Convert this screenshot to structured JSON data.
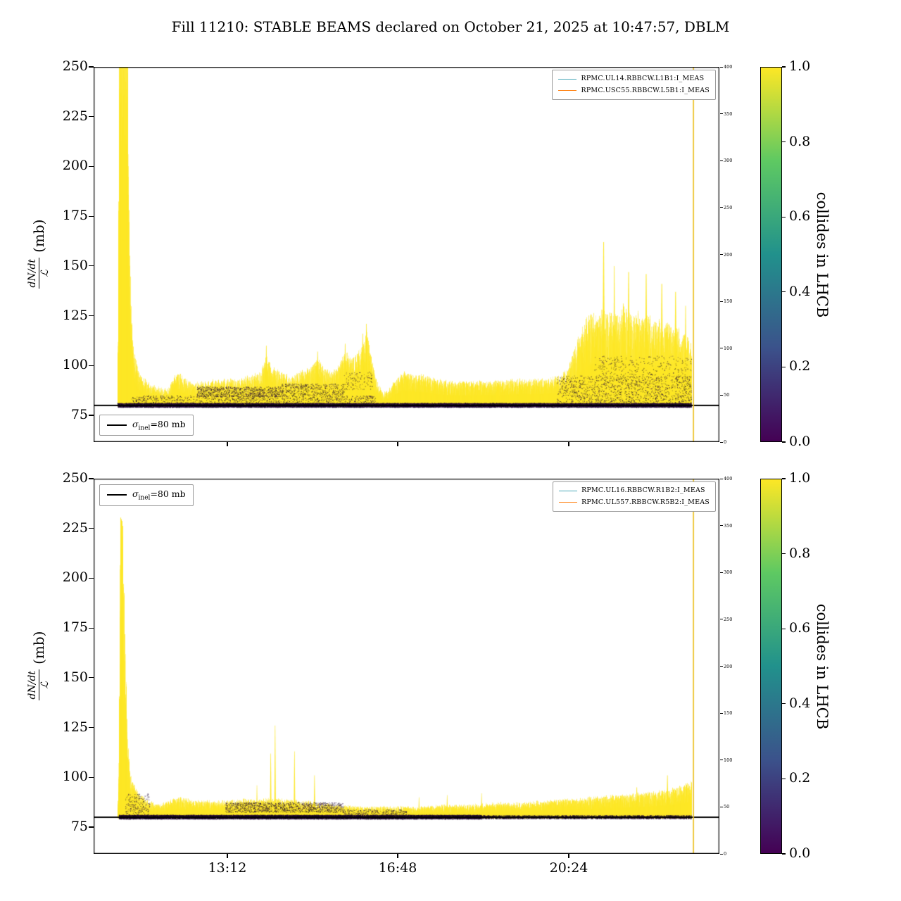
{
  "title": "Fill 11210: STABLE BEAMS declared on October 21, 2025 at 10:47:57, DBLM",
  "colors": {
    "data_yellow": "#fde725",
    "data_dark": "#2e0b45",
    "data_darker": "#120820",
    "ref_line": "#000000",
    "legend_line1": "#49a8b8",
    "legend_line2": "#ff7f0e",
    "vline": "#ecbf1e",
    "frame": "#000000"
  },
  "colorbar": {
    "label": "collides in LHCB",
    "ticks": [
      "1.0",
      "0.8",
      "0.6",
      "0.4",
      "0.2",
      "0.0"
    ],
    "gradient": [
      "#440154",
      "#3b528b",
      "#21918c",
      "#5ec962",
      "#fde725"
    ]
  },
  "xticks": [
    {
      "label": "13:12",
      "pos": 0.2137
    },
    {
      "label": "16:48",
      "pos": 0.4859
    },
    {
      "label": "20:24",
      "pos": 0.7593
    }
  ],
  "chart_data": [
    {
      "type": "scatter",
      "name": "beam1",
      "ylabel": {
        "num": "dN/dt",
        "den": "ℒ",
        "unit": "(mb)"
      },
      "ylim": [
        61.6,
        250
      ],
      "yticks": [
        250,
        225,
        200,
        175,
        150,
        125,
        100,
        75
      ],
      "right_yticks": [
        400,
        350,
        300,
        250,
        200,
        150,
        100,
        50,
        0
      ],
      "legend": [
        "RPMC.UL14.RBBCW.L1B1:I_MEAS",
        "RPMC.USC55.RBBCW.L5B1:I_MEAS"
      ],
      "sigma_label": {
        "symbol": "σ",
        "sub": "inel",
        "value": "=80 mb"
      },
      "reference_value": 80,
      "vline_x": 0.958,
      "seed": 7,
      "data_start": 0.038,
      "data_end": 0.955,
      "envelope": [
        [
          0.036,
          82
        ],
        [
          0.038,
          95
        ],
        [
          0.04,
          250
        ],
        [
          0.054,
          250
        ],
        [
          0.057,
          170
        ],
        [
          0.06,
          125
        ],
        [
          0.064,
          108
        ],
        [
          0.07,
          99
        ],
        [
          0.078,
          94
        ],
        [
          0.09,
          91
        ],
        [
          0.105,
          89
        ],
        [
          0.118,
          88
        ],
        [
          0.128,
          95
        ],
        [
          0.138,
          96
        ],
        [
          0.148,
          93
        ],
        [
          0.16,
          91
        ],
        [
          0.175,
          92
        ],
        [
          0.19,
          93
        ],
        [
          0.21,
          93
        ],
        [
          0.23,
          93
        ],
        [
          0.25,
          95
        ],
        [
          0.268,
          98
        ],
        [
          0.276,
          106
        ],
        [
          0.284,
          99
        ],
        [
          0.3,
          97
        ],
        [
          0.315,
          95
        ],
        [
          0.33,
          97
        ],
        [
          0.345,
          99
        ],
        [
          0.358,
          104
        ],
        [
          0.368,
          99
        ],
        [
          0.38,
          97
        ],
        [
          0.392,
          101
        ],
        [
          0.402,
          107
        ],
        [
          0.412,
          104
        ],
        [
          0.422,
          107
        ],
        [
          0.43,
          112
        ],
        [
          0.436,
          118
        ],
        [
          0.442,
          106
        ],
        [
          0.452,
          92
        ],
        [
          0.462,
          86
        ],
        [
          0.472,
          88
        ],
        [
          0.482,
          93
        ],
        [
          0.495,
          97
        ],
        [
          0.51,
          96
        ],
        [
          0.53,
          95
        ],
        [
          0.55,
          93
        ],
        [
          0.57,
          92
        ],
        [
          0.59,
          92
        ],
        [
          0.61,
          92
        ],
        [
          0.63,
          92
        ],
        [
          0.65,
          92
        ],
        [
          0.67,
          93
        ],
        [
          0.69,
          93
        ],
        [
          0.71,
          93
        ],
        [
          0.73,
          94
        ],
        [
          0.745,
          95
        ],
        [
          0.755,
          98
        ],
        [
          0.762,
          103
        ],
        [
          0.77,
          110
        ],
        [
          0.778,
          118
        ],
        [
          0.788,
          124
        ],
        [
          0.798,
          128
        ],
        [
          0.806,
          124
        ],
        [
          0.814,
          130
        ],
        [
          0.822,
          126
        ],
        [
          0.83,
          128
        ],
        [
          0.838,
          125
        ],
        [
          0.846,
          131
        ],
        [
          0.854,
          127
        ],
        [
          0.862,
          125
        ],
        [
          0.87,
          127
        ],
        [
          0.878,
          124
        ],
        [
          0.886,
          126
        ],
        [
          0.894,
          122
        ],
        [
          0.902,
          124
        ],
        [
          0.91,
          120
        ],
        [
          0.918,
          122
        ],
        [
          0.926,
          118
        ],
        [
          0.934,
          120
        ],
        [
          0.942,
          117
        ],
        [
          0.95,
          114
        ],
        [
          0.955,
          110
        ]
      ],
      "spikes": [
        [
          0.276,
          110,
          1.5
        ],
        [
          0.358,
          107,
          1.5
        ],
        [
          0.402,
          111,
          1.5
        ],
        [
          0.43,
          116,
          1.5
        ],
        [
          0.436,
          121,
          1.5
        ],
        [
          0.815,
          162,
          2
        ],
        [
          0.832,
          150,
          1.5
        ],
        [
          0.855,
          147,
          2
        ],
        [
          0.883,
          146,
          2
        ],
        [
          0.908,
          141,
          2
        ],
        [
          0.93,
          137,
          2
        ],
        [
          0.946,
          130,
          1.5
        ]
      ],
      "dark_regions": [
        [
          0.038,
          0.955,
          79.2,
          81.2,
          30
        ],
        [
          0.06,
          0.45,
          81,
          85,
          3
        ],
        [
          0.165,
          0.3,
          84.5,
          89.5,
          7
        ],
        [
          0.3,
          0.4,
          85,
          91,
          5
        ],
        [
          0.4,
          0.445,
          88,
          97,
          3
        ],
        [
          0.74,
          0.955,
          81,
          95,
          7
        ],
        [
          0.8,
          0.955,
          95,
          105,
          2
        ]
      ]
    },
    {
      "type": "scatter",
      "name": "beam2",
      "ylabel": {
        "num": "dN/dt",
        "den": "ℒ",
        "unit": "(mb)"
      },
      "ylim": [
        61.6,
        250
      ],
      "yticks": [
        250,
        225,
        200,
        175,
        150,
        125,
        100,
        75
      ],
      "right_yticks": [
        400,
        350,
        300,
        250,
        200,
        150,
        100,
        50,
        0
      ],
      "legend": [
        "RPMC.UL16.RBBCW.R1B2:I_MEAS",
        "RPMC.UL557.RBBCW.R5B2:I_MEAS"
      ],
      "sigma_label": {
        "symbol": "σ",
        "sub": "inel",
        "value": "=80 mb"
      },
      "reference_value": 80,
      "vline_x": 0.958,
      "seed": 13,
      "data_start": 0.038,
      "data_end": 0.955,
      "envelope": [
        [
          0.038,
          84
        ],
        [
          0.04,
          120
        ],
        [
          0.042,
          231
        ],
        [
          0.046,
          228
        ],
        [
          0.05,
          170
        ],
        [
          0.054,
          120
        ],
        [
          0.058,
          104
        ],
        [
          0.064,
          97
        ],
        [
          0.072,
          92
        ],
        [
          0.082,
          89
        ],
        [
          0.095,
          87
        ],
        [
          0.11,
          87
        ],
        [
          0.125,
          89
        ],
        [
          0.135,
          90
        ],
        [
          0.148,
          89
        ],
        [
          0.165,
          88
        ],
        [
          0.185,
          88
        ],
        [
          0.21,
          88
        ],
        [
          0.24,
          89
        ],
        [
          0.27,
          89
        ],
        [
          0.3,
          89
        ],
        [
          0.33,
          88
        ],
        [
          0.36,
          87
        ],
        [
          0.39,
          86
        ],
        [
          0.42,
          85
        ],
        [
          0.45,
          85
        ],
        [
          0.48,
          85
        ],
        [
          0.52,
          85
        ],
        [
          0.56,
          86
        ],
        [
          0.6,
          86
        ],
        [
          0.64,
          87
        ],
        [
          0.68,
          87
        ],
        [
          0.72,
          88
        ],
        [
          0.76,
          89
        ],
        [
          0.8,
          90
        ],
        [
          0.84,
          91
        ],
        [
          0.87,
          92
        ],
        [
          0.9,
          93
        ],
        [
          0.92,
          94
        ],
        [
          0.94,
          96
        ],
        [
          0.955,
          98
        ]
      ],
      "spikes": [
        [
          0.261,
          96,
          1
        ],
        [
          0.283,
          112,
          1.2
        ],
        [
          0.29,
          126,
          1.2
        ],
        [
          0.321,
          113,
          1.2
        ],
        [
          0.353,
          101,
          1.2
        ],
        [
          0.52,
          90,
          1
        ],
        [
          0.565,
          91,
          1
        ],
        [
          0.62,
          92,
          1
        ],
        [
          0.868,
          95,
          1.5
        ],
        [
          0.917,
          101,
          1.5
        ]
      ],
      "dark_regions": [
        [
          0.04,
          0.62,
          79.2,
          81.2,
          26
        ],
        [
          0.62,
          0.955,
          79.3,
          81,
          10
        ],
        [
          0.21,
          0.4,
          82.5,
          87.5,
          7
        ],
        [
          0.05,
          0.09,
          81,
          92,
          6
        ],
        [
          0.4,
          0.5,
          81,
          84,
          3
        ]
      ]
    }
  ]
}
